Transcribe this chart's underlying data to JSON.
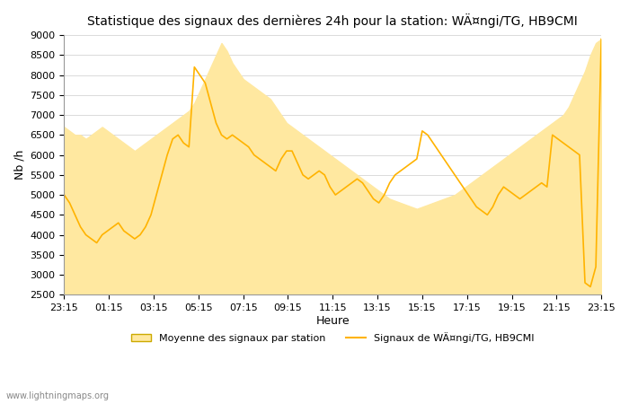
{
  "title": "Statistique des signaux des dernières 24h pour la station: WÄ¤ngi/TG, HB9CMI",
  "xlabel": "Heure",
  "ylabel": "Nb /h",
  "watermark": "www.lightningmaps.org",
  "legend_fill": "Moyenne des signaux par station",
  "legend_line": "Signaux de WÄ¤ngi/TG, HB9CMI",
  "x_ticks": [
    "23:15",
    "01:15",
    "03:15",
    "05:15",
    "07:15",
    "09:15",
    "11:15",
    "13:15",
    "15:15",
    "17:15",
    "19:15",
    "21:15",
    "23:15"
  ],
  "ylim": [
    2500,
    9000
  ],
  "yticks": [
    2500,
    3000,
    3500,
    4000,
    4500,
    5000,
    5500,
    6000,
    6500,
    7000,
    7500,
    8000,
    8500,
    9000
  ],
  "fill_color": "#FFE8A0",
  "line_color": "#FFB300",
  "bg_color": "#FFFFFF",
  "grid_color": "#CCCCCC",
  "mean_data": [
    6700,
    6600,
    6500,
    6500,
    6400,
    6500,
    6600,
    6700,
    6600,
    6500,
    6400,
    6300,
    6200,
    6100,
    6200,
    6300,
    6400,
    6500,
    6600,
    6700,
    6800,
    6900,
    7000,
    7100,
    7300,
    7600,
    7900,
    8200,
    8500,
    8800,
    8600,
    8300,
    8100,
    7900,
    7800,
    7700,
    7600,
    7500,
    7400,
    7200,
    7000,
    6800,
    6700,
    6600,
    6500,
    6400,
    6300,
    6200,
    6100,
    6000,
    5900,
    5800,
    5700,
    5600,
    5500,
    5400,
    5300,
    5200,
    5100,
    5000,
    4900,
    4850,
    4800,
    4750,
    4700,
    4650,
    4700,
    4750,
    4800,
    4850,
    4900,
    4950,
    5000,
    5100,
    5200,
    5300,
    5400,
    5500,
    5600,
    5700,
    5800,
    5900,
    6000,
    6100,
    6200,
    6300,
    6400,
    6500,
    6600,
    6700,
    6800,
    6900,
    7000,
    7200,
    7500,
    7800,
    8100,
    8500,
    8800,
    8900
  ],
  "line_data": [
    5000,
    4800,
    4500,
    4200,
    4000,
    3900,
    3800,
    4000,
    4100,
    4200,
    4300,
    4100,
    4000,
    3900,
    4000,
    4200,
    4500,
    5000,
    5500,
    6000,
    6400,
    6500,
    6300,
    6200,
    8200,
    8000,
    7800,
    7300,
    6800,
    6500,
    6400,
    6500,
    6400,
    6300,
    6200,
    6000,
    5900,
    5800,
    5700,
    5600,
    5900,
    6100,
    6100,
    5800,
    5500,
    5400,
    5500,
    5600,
    5500,
    5200,
    5000,
    5100,
    5200,
    5300,
    5400,
    5300,
    5100,
    4900,
    4800,
    5000,
    5300,
    5500,
    5600,
    5700,
    5800,
    5900,
    6600,
    6500,
    6300,
    6100,
    5900,
    5700,
    5500,
    5300,
    5100,
    4900,
    4700,
    4600,
    4500,
    4700,
    5000,
    5200,
    5100,
    5000,
    4900,
    5000,
    5100,
    5200,
    5300,
    5200,
    6500,
    6400,
    6300,
    6200,
    6100,
    6000,
    2800,
    2700,
    3200,
    8900
  ]
}
